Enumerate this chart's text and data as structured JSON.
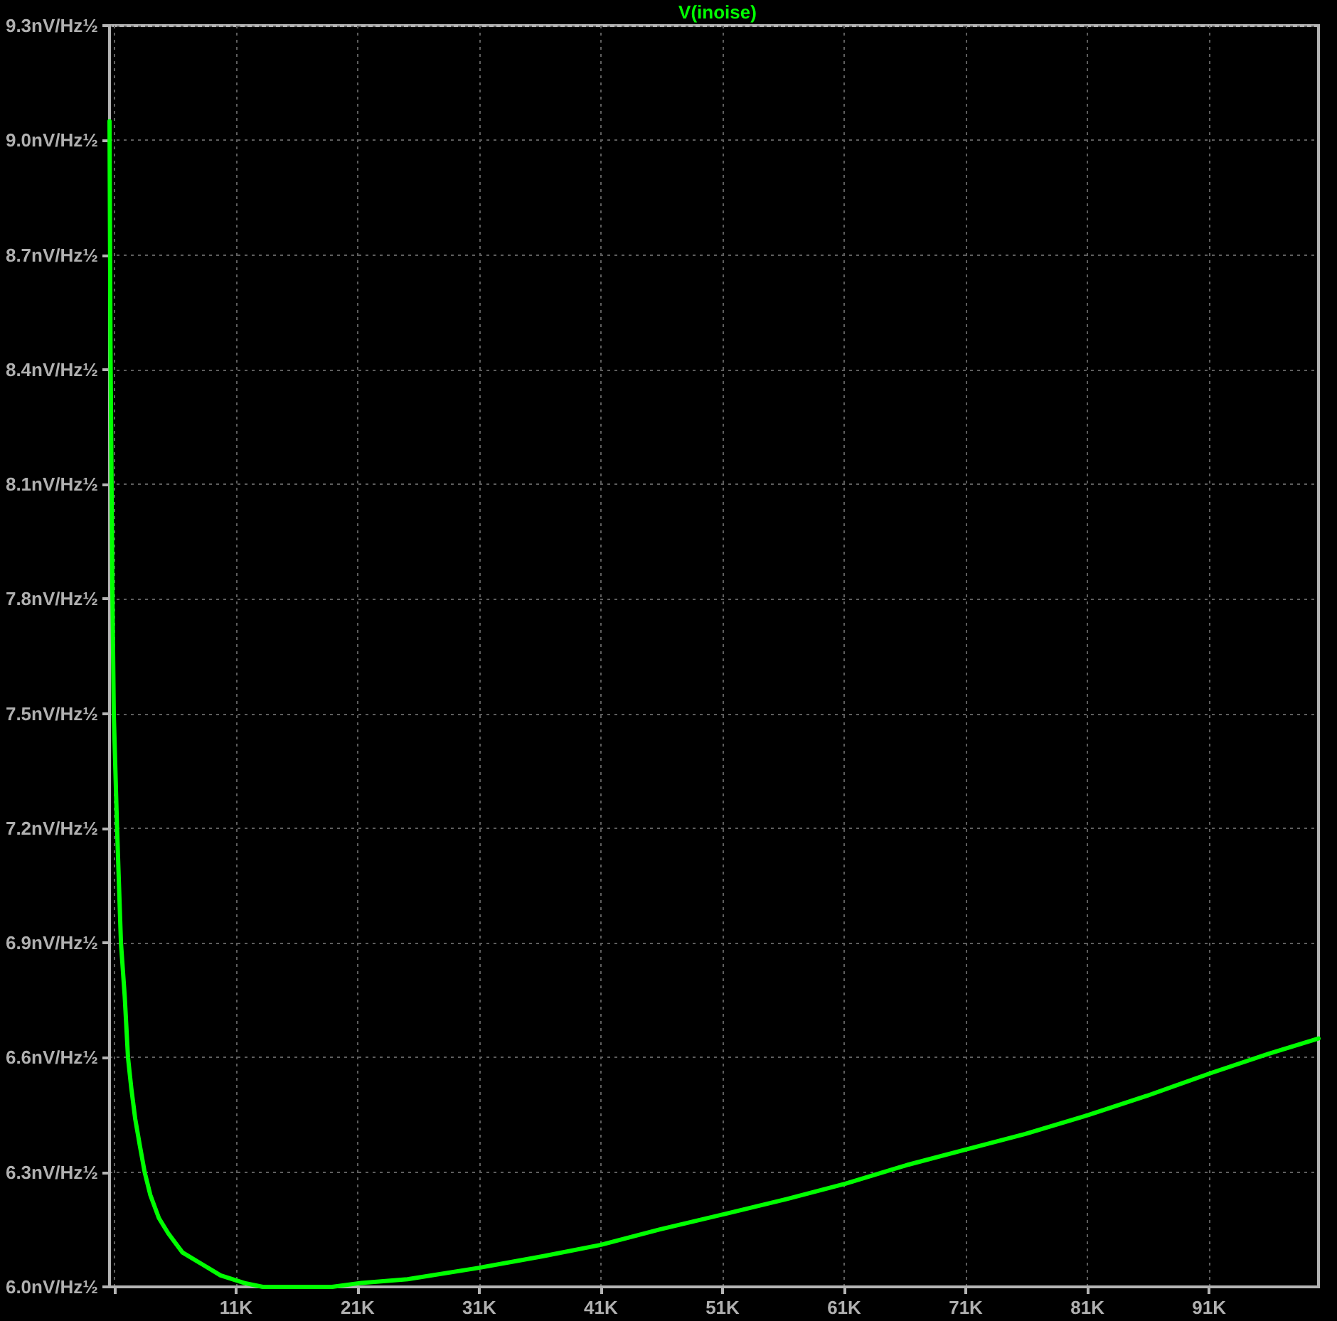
{
  "chart_data": {
    "type": "line",
    "x": [
      600,
      680,
      830,
      950,
      1220,
      1540,
      1850,
      2120,
      2390,
      2710,
      3090,
      3490,
      3960,
      4660,
      5430,
      6600,
      8170,
      9730,
      11700,
      13200,
      15400,
      18900,
      21200,
      25100,
      31000,
      36200,
      41000,
      45800,
      51100,
      56300,
      61100,
      66300,
      71100,
      75900,
      81100,
      85900,
      91200,
      95900,
      100000
    ],
    "series": [
      {
        "name": "V(inoise)",
        "color": "#00ff00",
        "values": [
          9.05,
          8.46,
          7.84,
          7.5,
          7.2,
          6.9,
          6.76,
          6.6,
          6.52,
          6.44,
          6.37,
          6.3,
          6.24,
          6.18,
          6.14,
          6.09,
          6.06,
          6.03,
          6.01,
          6.0,
          6.0,
          6.0,
          6.01,
          6.02,
          6.05,
          6.08,
          6.11,
          6.15,
          6.19,
          6.23,
          6.27,
          6.32,
          6.36,
          6.4,
          6.45,
          6.5,
          6.56,
          6.61,
          6.65
        ]
      }
    ],
    "xlim": [
      600,
      100000
    ],
    "xticks": [
      {
        "value": 1000,
        "label": null
      },
      {
        "value": 11000,
        "label": "11K"
      },
      {
        "value": 21000,
        "label": "21K"
      },
      {
        "value": 31000,
        "label": "31K"
      },
      {
        "value": 41000,
        "label": "41K"
      },
      {
        "value": 51000,
        "label": "51K"
      },
      {
        "value": 61000,
        "label": "61K"
      },
      {
        "value": 71000,
        "label": "71K"
      },
      {
        "value": 81000,
        "label": "81K"
      },
      {
        "value": 91000,
        "label": "91K"
      }
    ],
    "ylim": [
      6.0,
      9.3
    ],
    "yticks": [
      {
        "value": 6.0,
        "label": "6.0nV/Hz½"
      },
      {
        "value": 6.3,
        "label": "6.3nV/Hz½"
      },
      {
        "value": 6.6,
        "label": "6.6nV/Hz½"
      },
      {
        "value": 6.9,
        "label": "6.9nV/Hz½"
      },
      {
        "value": 7.2,
        "label": "7.2nV/Hz½"
      },
      {
        "value": 7.5,
        "label": "7.5nV/Hz½"
      },
      {
        "value": 7.8,
        "label": "7.8nV/Hz½"
      },
      {
        "value": 8.1,
        "label": "8.1nV/Hz½"
      },
      {
        "value": 8.4,
        "label": "8.4nV/Hz½"
      },
      {
        "value": 8.7,
        "label": "8.7nV/Hz½"
      },
      {
        "value": 9.0,
        "label": "9.0nV/Hz½"
      },
      {
        "value": 9.3,
        "label": "9.3nV/Hz½"
      }
    ],
    "grid": true,
    "legend": "top"
  }
}
